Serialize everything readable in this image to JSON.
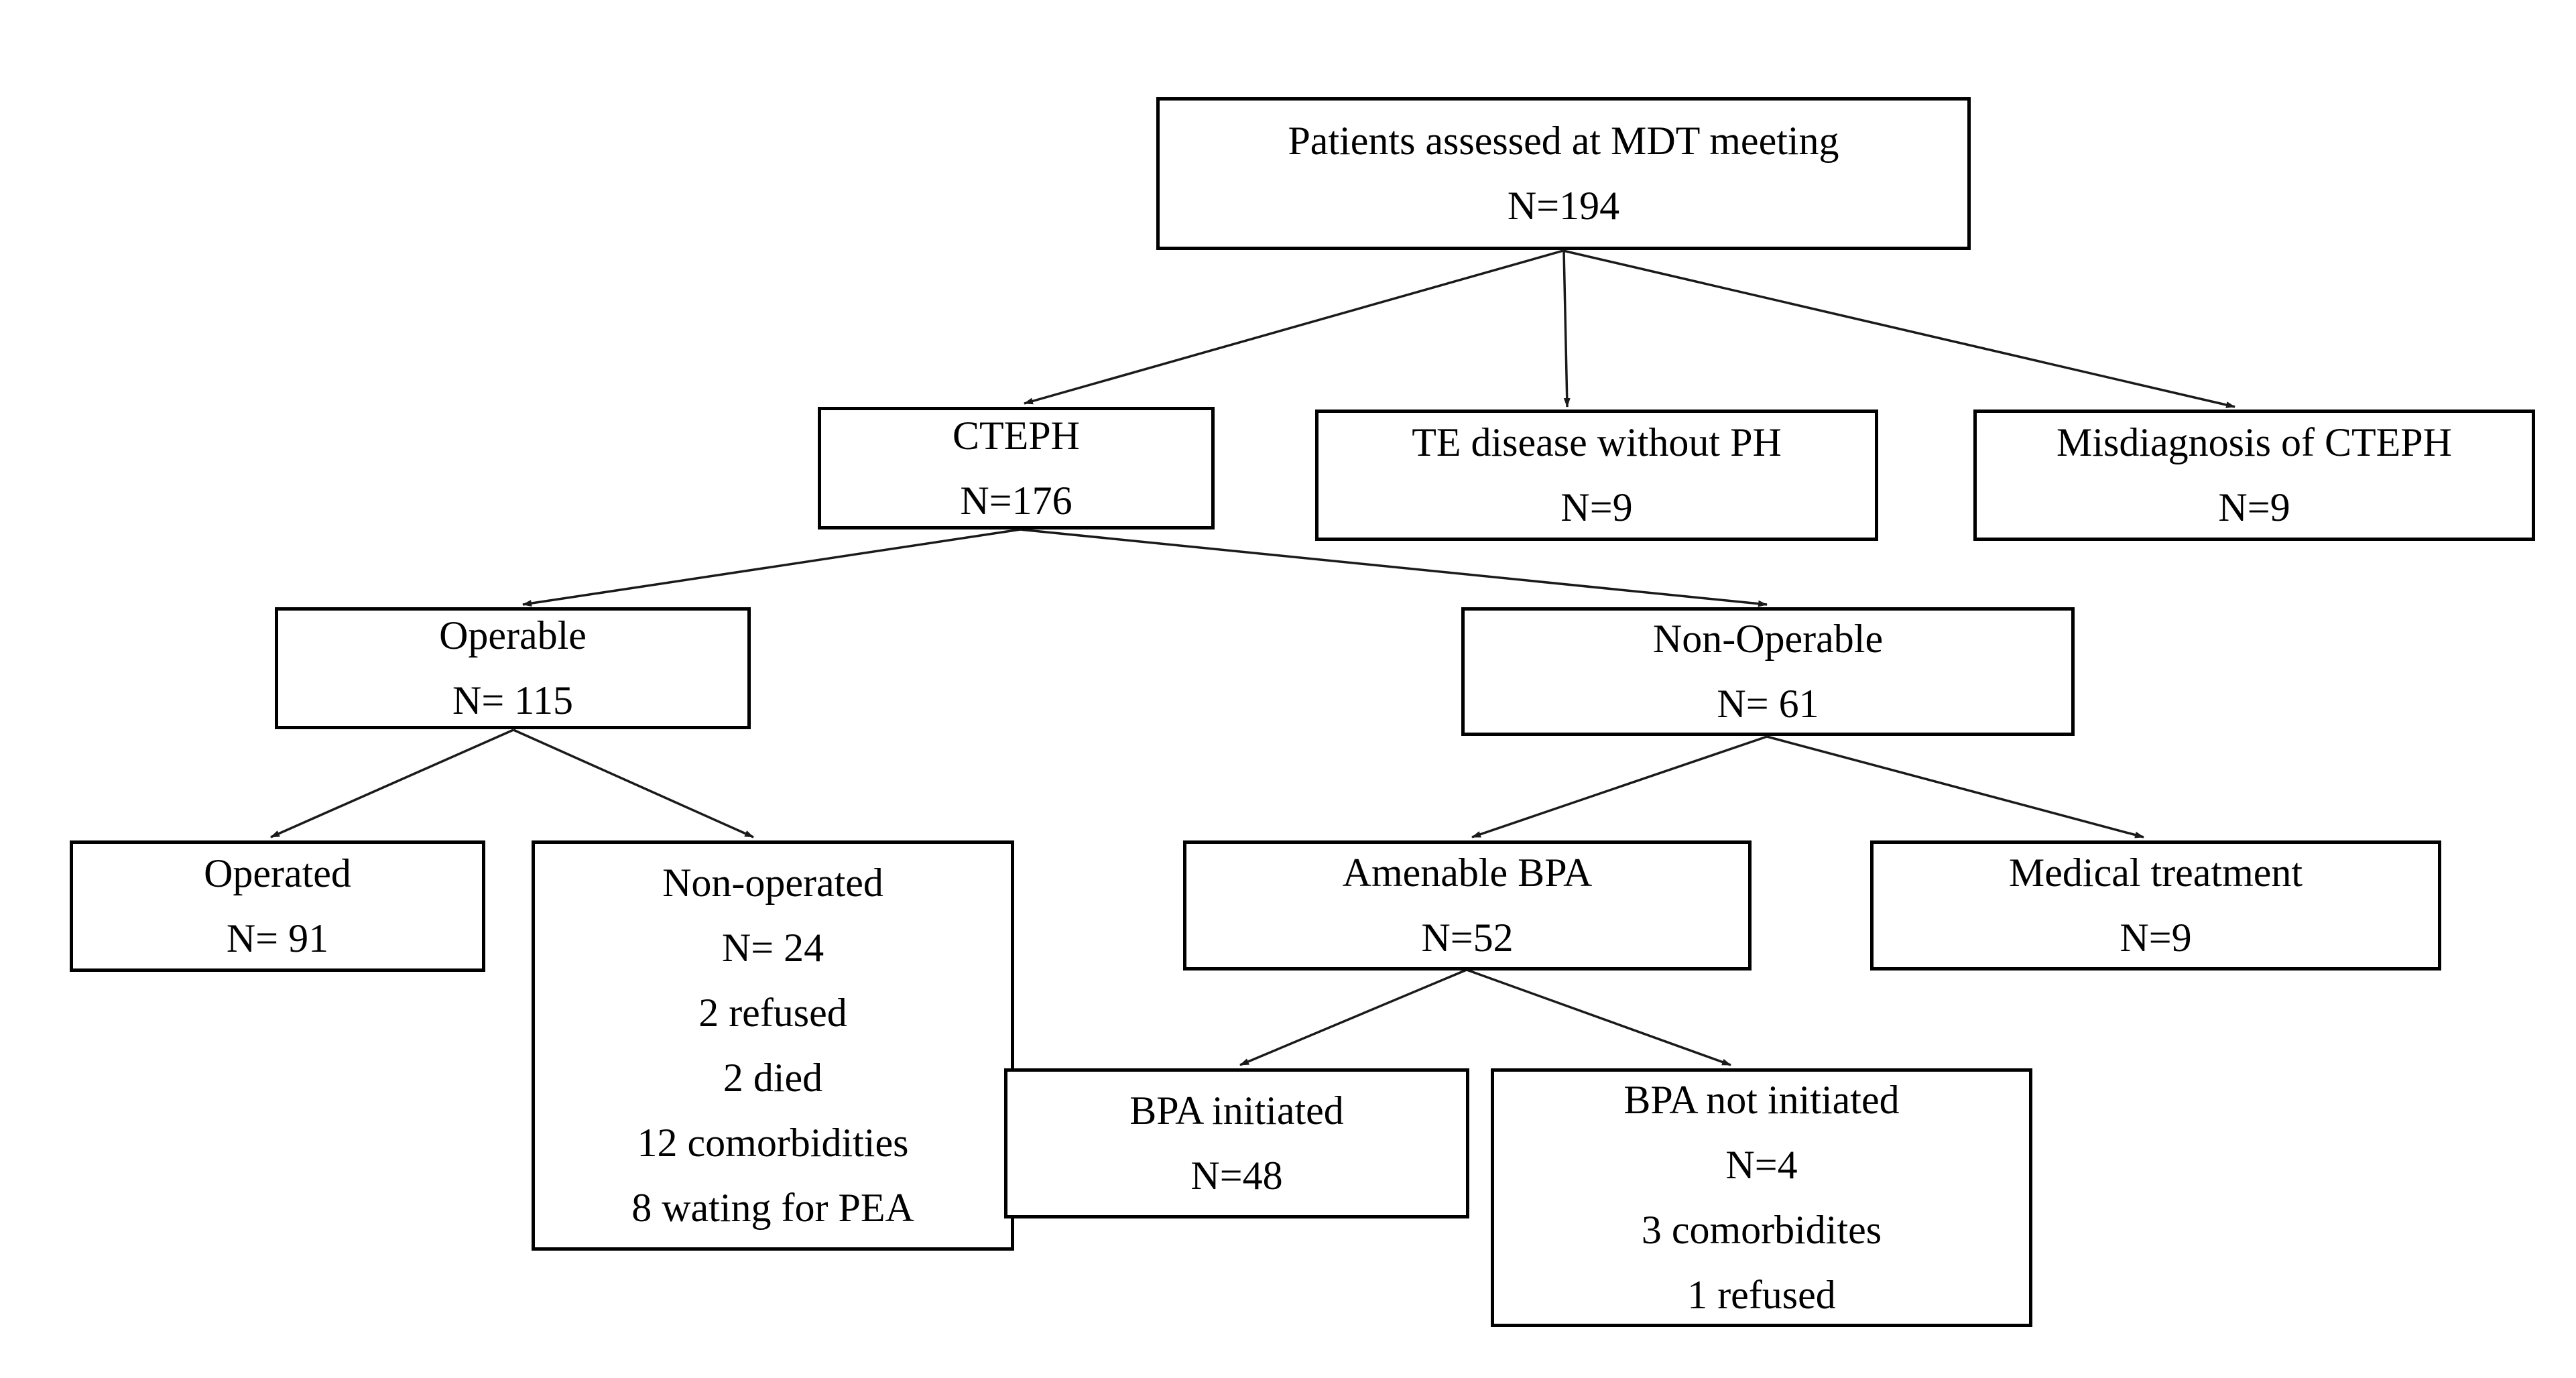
{
  "colors": {
    "background": "#ffffff",
    "box_border": "#000000",
    "text": "#000000",
    "arrow": "#1a1a1a"
  },
  "nodes": {
    "mdt": {
      "label": "Patients assessed at MDT meeting",
      "count": "N=194"
    },
    "cteph": {
      "label": "CTEPH",
      "count": "N=176"
    },
    "te_disease": {
      "label": "TE disease without PH",
      "count": "N=9"
    },
    "misdiagnosis": {
      "label": "Misdiagnosis of CTEPH",
      "count": "N=9"
    },
    "operable": {
      "label": "Operable",
      "count": "N= 115"
    },
    "non_operable": {
      "label": "Non-Operable",
      "count": "N= 61"
    },
    "operated": {
      "label": "Operated",
      "count": "N= 91"
    },
    "non_operated": {
      "label": "Non-operated",
      "count": "N= 24",
      "details": [
        "2 refused",
        "2 died",
        "12 comorbidities",
        "8 wating for PEA"
      ]
    },
    "amenable_bpa": {
      "label": "Amenable BPA",
      "count": "N=52"
    },
    "medical": {
      "label": "Medical treatment",
      "count": "N=9"
    },
    "bpa_initiated": {
      "label": "BPA initiated",
      "count": "N=48"
    },
    "bpa_not_initiated": {
      "label": "BPA not initiated",
      "count": "N=4",
      "details": [
        "3 comorbidites",
        "1 refused"
      ]
    }
  }
}
